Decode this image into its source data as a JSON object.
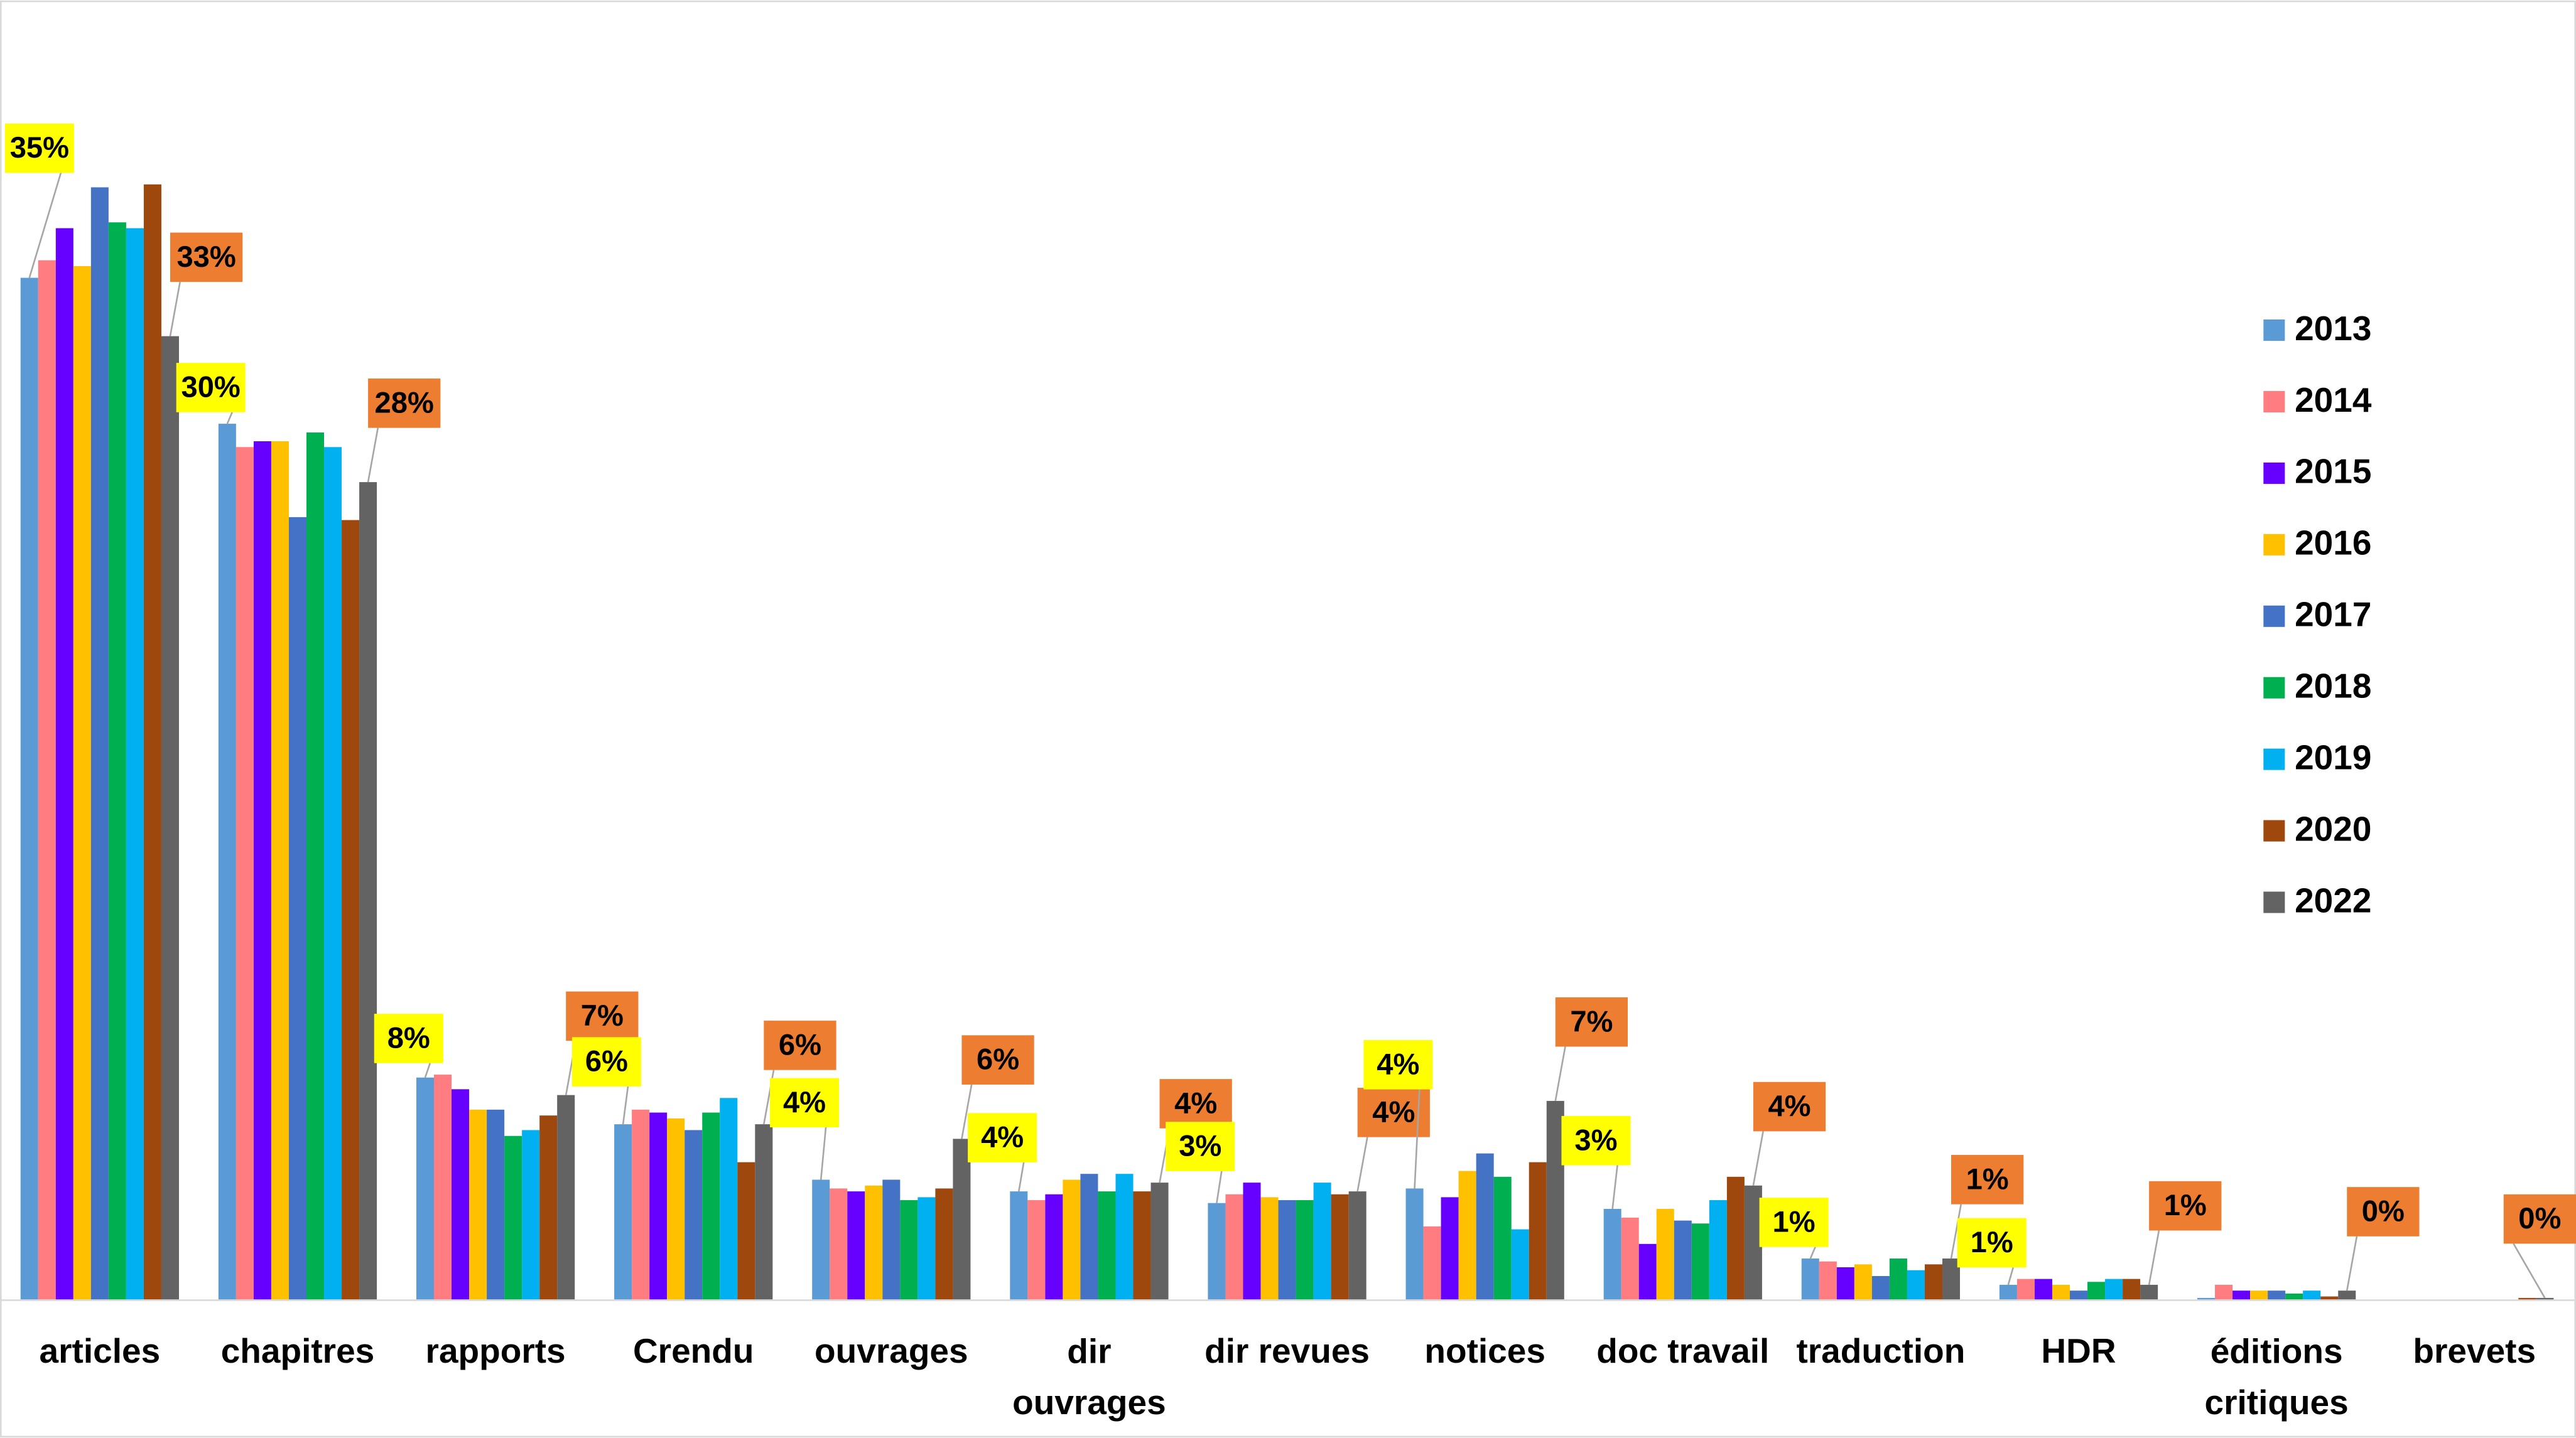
{
  "chart_data": {
    "type": "bar",
    "categories": [
      "articles",
      "chapitres",
      "rapports",
      "Crendu",
      "ouvrages",
      "dir ouvrages",
      "dir revues",
      "notices",
      "doc travail",
      "traduction",
      "HDR",
      "éditions critiques",
      "brevets"
    ],
    "ylim": [
      0,
      44.5
    ],
    "series": [
      {
        "name": "2013",
        "color": "#5b9bd5",
        "values": [
          35,
          30,
          7.6,
          6,
          4.1,
          3.7,
          3.3,
          3.8,
          3.1,
          1.4,
          0.5,
          0.05,
          0
        ],
        "value_labels": [
          "35%",
          "30%",
          "8%",
          "6%",
          "4%",
          "4%",
          "3%",
          "4%",
          "3%",
          "1%",
          "1%",
          null,
          null
        ]
      },
      {
        "name": "2014",
        "color": "#ff7c80",
        "values": [
          35.6,
          29.2,
          7.7,
          6.5,
          3.8,
          3.4,
          3.6,
          2.5,
          2.8,
          1.3,
          0.7,
          0.5,
          0
        ]
      },
      {
        "name": "2015",
        "color": "#6600ff",
        "values": [
          36.7,
          29.4,
          7.2,
          6.4,
          3.7,
          3.6,
          4.0,
          3.5,
          1.9,
          1.1,
          0.7,
          0.3,
          0
        ]
      },
      {
        "name": "2016",
        "color": "#ffc000",
        "values": [
          35.4,
          29.4,
          6.5,
          6.2,
          3.9,
          4.1,
          3.5,
          4.4,
          3.1,
          1.2,
          0.5,
          0.3,
          0
        ]
      },
      {
        "name": "2017",
        "color": "#4472c4",
        "values": [
          38.1,
          26.8,
          6.5,
          5.8,
          4.1,
          4.3,
          3.4,
          5.0,
          2.7,
          0.8,
          0.3,
          0.3,
          0
        ]
      },
      {
        "name": "2018",
        "color": "#00b050",
        "values": [
          36.9,
          29.7,
          5.6,
          6.4,
          3.4,
          3.7,
          3.4,
          4.2,
          2.6,
          1.4,
          0.6,
          0.2,
          0
        ]
      },
      {
        "name": "2019",
        "color": "#00b0f0",
        "values": [
          36.7,
          29.2,
          5.8,
          6.9,
          3.5,
          4.3,
          4.0,
          2.4,
          3.4,
          1.0,
          0.7,
          0.3,
          0
        ]
      },
      {
        "name": "2020",
        "color": "#9e480e",
        "values": [
          38.2,
          26.7,
          6.3,
          4.7,
          3.8,
          3.7,
          3.6,
          4.7,
          4.2,
          1.2,
          0.7,
          0.1,
          0.05
        ]
      },
      {
        "name": "2022",
        "color": "#636363",
        "values": [
          33,
          28,
          7,
          6,
          5.5,
          4,
          3.7,
          6.8,
          3.9,
          1.4,
          0.5,
          0.3,
          0.05
        ],
        "value_labels": [
          "33%",
          "28%",
          "7%",
          "6%",
          "6%",
          "4%",
          "4%",
          "7%",
          "4%",
          "1%",
          "1%",
          "0%",
          "0%"
        ]
      }
    ]
  }
}
